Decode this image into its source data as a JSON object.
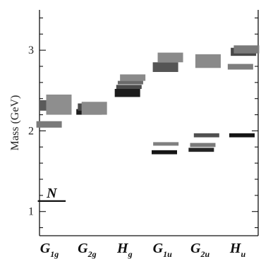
{
  "chart_data": {
    "type": "range-bar",
    "xlabel": "",
    "ylabel": "Mass (GeV)",
    "ylim": [
      0.7,
      3.5
    ],
    "yticks": [
      1,
      2,
      3
    ],
    "grid": false,
    "categories": [
      {
        "main": "G",
        "sub": "1g"
      },
      {
        "main": "G",
        "sub": "2g"
      },
      {
        "main": "H",
        "sub": "g"
      },
      {
        "main": "G",
        "sub": "1u"
      },
      {
        "main": "G",
        "sub": "2u"
      },
      {
        "main": "H",
        "sub": "u"
      }
    ],
    "reference": {
      "label": "N",
      "mass": 1.13,
      "category_span": [
        -0.42,
        0.32
      ],
      "color": "#111111"
    },
    "states": [
      {
        "category": 0,
        "offset": -0.12,
        "low": 2.04,
        "high": 2.12,
        "color": "#7a7a7a"
      },
      {
        "category": 0,
        "offset": -0.02,
        "low": 2.25,
        "high": 2.38,
        "color": "#5a5a5a"
      },
      {
        "category": 0,
        "offset": 0.14,
        "low": 2.2,
        "high": 2.45,
        "color": "#8e8e8e"
      },
      {
        "category": 1,
        "offset": -0.06,
        "low": 2.2,
        "high": 2.27,
        "color": "#1c1c1c"
      },
      {
        "category": 1,
        "offset": -0.02,
        "low": 2.25,
        "high": 2.34,
        "color": "#4a4a4a"
      },
      {
        "category": 1,
        "offset": 0.08,
        "low": 2.2,
        "high": 2.36,
        "color": "#8a8a8a"
      },
      {
        "category": 2,
        "offset": -0.04,
        "low": 2.42,
        "high": 2.52,
        "color": "#1c1c1c"
      },
      {
        "category": 2,
        "offset": 0.0,
        "low": 2.52,
        "high": 2.57,
        "color": "#4a4a4a"
      },
      {
        "category": 2,
        "offset": 0.04,
        "low": 2.58,
        "high": 2.62,
        "color": "#6a6a6a"
      },
      {
        "category": 2,
        "offset": 0.1,
        "low": 2.62,
        "high": 2.7,
        "color": "#8a8a8a"
      },
      {
        "category": 3,
        "offset": -0.06,
        "low": 1.71,
        "high": 1.76,
        "color": "#151515"
      },
      {
        "category": 3,
        "offset": -0.02,
        "low": 1.82,
        "high": 1.86,
        "color": "#808080"
      },
      {
        "category": 3,
        "offset": -0.03,
        "low": 2.73,
        "high": 2.85,
        "color": "#555555"
      },
      {
        "category": 3,
        "offset": 0.1,
        "low": 2.85,
        "high": 2.97,
        "color": "#8a8a8a"
      },
      {
        "category": 4,
        "offset": -0.08,
        "low": 1.74,
        "high": 1.79,
        "color": "#252525"
      },
      {
        "category": 4,
        "offset": -0.04,
        "low": 1.8,
        "high": 1.85,
        "color": "#7a7a7a"
      },
      {
        "category": 4,
        "offset": 0.06,
        "low": 1.92,
        "high": 1.97,
        "color": "#505050"
      },
      {
        "category": 4,
        "offset": 0.1,
        "low": 2.78,
        "high": 2.95,
        "color": "#8a8a8a"
      },
      {
        "category": 5,
        "offset": 0.0,
        "low": 1.92,
        "high": 1.97,
        "color": "#151515"
      },
      {
        "category": 5,
        "offset": -0.04,
        "low": 2.76,
        "high": 2.83,
        "color": "#7e7e7e"
      },
      {
        "category": 5,
        "offset": 0.04,
        "low": 2.93,
        "high": 3.03,
        "color": "#484848"
      },
      {
        "category": 5,
        "offset": 0.12,
        "low": 2.96,
        "high": 3.06,
        "color": "#7a7a7a"
      }
    ]
  }
}
